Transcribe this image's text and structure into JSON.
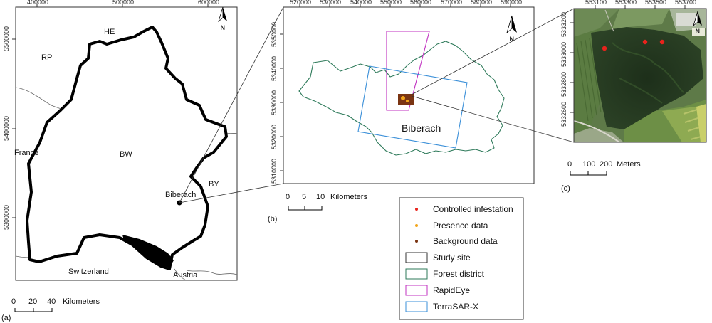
{
  "panel_a": {
    "tag": "(a)",
    "x_ticks": [
      "400000",
      "500000",
      "600000"
    ],
    "y_ticks": [
      "5500000",
      "5400000",
      "5300000"
    ],
    "regions": {
      "he": "HE",
      "rp": "RP",
      "bw": "BW",
      "by": "BY",
      "france": "France",
      "switzerland": "Switzerland",
      "austria": "Austria"
    },
    "city": "Biberach",
    "scale": {
      "ticks": [
        "0",
        "20",
        "40"
      ],
      "unit": "Kilometers"
    }
  },
  "panel_b": {
    "tag": "(b)",
    "x_ticks": [
      "520000",
      "530000",
      "540000",
      "550000",
      "560000",
      "570000",
      "580000",
      "590000"
    ],
    "y_ticks": [
      "5350000",
      "5340000",
      "5330000",
      "5320000",
      "5310000"
    ],
    "district": "Biberach",
    "scale": {
      "ticks": [
        "0",
        "5",
        "10"
      ],
      "unit": "Kilometers"
    }
  },
  "panel_c": {
    "tag": "(c)",
    "x_ticks": [
      "553100",
      "553300",
      "553500",
      "553700"
    ],
    "y_ticks": [
      "5333200",
      "5333000",
      "5332800",
      "5332600"
    ],
    "scale": {
      "ticks": [
        "0",
        "100",
        "200"
      ],
      "unit": "Meters"
    }
  },
  "north_label": "N",
  "legend": [
    {
      "label": "Controlled infestation",
      "symbol": "dot",
      "color": "#e8231c"
    },
    {
      "label": "Presence data",
      "symbol": "dot",
      "color": "#f2a51a"
    },
    {
      "label": "Background data",
      "symbol": "dot",
      "color": "#7a3412"
    },
    {
      "label": "Study site",
      "symbol": "box",
      "color": "#333333"
    },
    {
      "label": "Forest district",
      "symbol": "box",
      "color": "#2e7a5a"
    },
    {
      "label": "RapidEye",
      "symbol": "box",
      "color": "#c030c0"
    },
    {
      "label": "TerraSAR-X",
      "symbol": "box",
      "color": "#3a8fd8"
    }
  ]
}
